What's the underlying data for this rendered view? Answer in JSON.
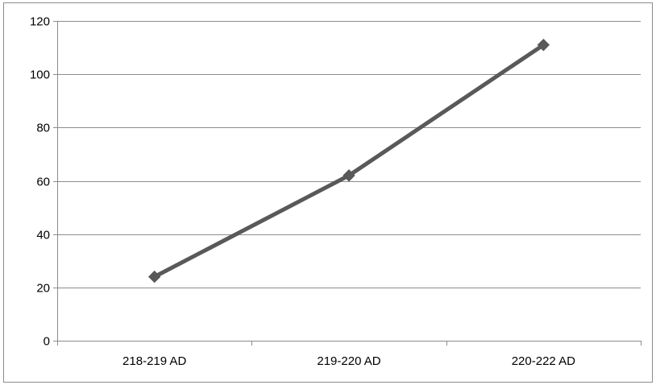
{
  "chart_data": {
    "type": "line",
    "categories": [
      "218-219 AD",
      "219-220 AD",
      "220-222 AD"
    ],
    "series": [
      {
        "values": [
          24,
          62,
          111
        ],
        "color": "#595959",
        "marker": "diamond"
      }
    ],
    "ylim": [
      0,
      120
    ],
    "yticks": [
      0,
      20,
      40,
      60,
      80,
      100,
      120
    ],
    "grid": true,
    "legend": "none"
  }
}
